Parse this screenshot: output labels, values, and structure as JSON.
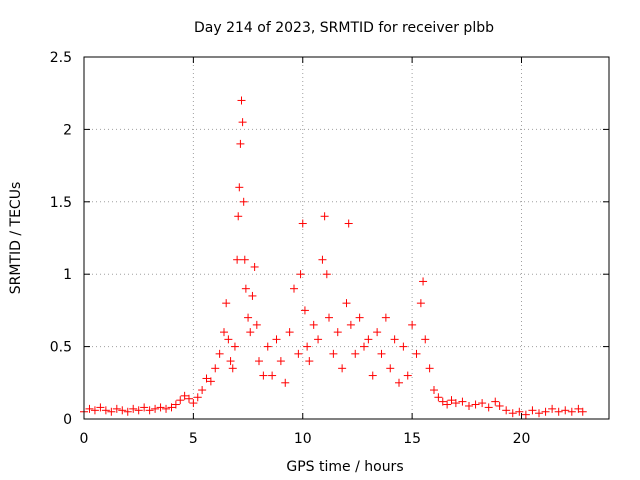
{
  "chart_data": {
    "type": "scatter",
    "title": "Day 214 of 2023, SRMTID for receiver plbb",
    "xlabel": "GPS time / hours",
    "ylabel": "SRMTID / TECUs",
    "xlim": [
      0,
      24
    ],
    "ylim": [
      0,
      2.5
    ],
    "xticks": [
      0,
      5,
      10,
      15,
      20
    ],
    "yticks": [
      0,
      0.5,
      1,
      1.5,
      2,
      2.5
    ],
    "xtick_labels": [
      "0",
      "5",
      "10",
      "15",
      "20"
    ],
    "ytick_labels": [
      "0",
      "0.5",
      "1",
      "1.5",
      "2",
      "2.5"
    ],
    "grid": true,
    "marker": "+",
    "series_color": "#ff0000",
    "series": [
      {
        "name": "SRMTID",
        "x": [
          0.0,
          0.25,
          0.5,
          0.75,
          1.0,
          1.25,
          1.5,
          1.75,
          2.0,
          2.25,
          2.5,
          2.75,
          3.0,
          3.25,
          3.5,
          3.75,
          4.0,
          4.2,
          4.4,
          4.6,
          4.8,
          5.0,
          5.2,
          5.4,
          5.6,
          5.8,
          6.0,
          6.2,
          6.4,
          6.5,
          6.6,
          6.7,
          6.8,
          6.9,
          7.0,
          7.05,
          7.1,
          7.15,
          7.2,
          7.25,
          7.3,
          7.35,
          7.4,
          7.5,
          7.6,
          7.7,
          7.8,
          7.9,
          8.0,
          8.2,
          8.4,
          8.6,
          8.8,
          9.0,
          9.2,
          9.4,
          9.6,
          9.8,
          9.9,
          10.0,
          10.1,
          10.2,
          10.3,
          10.5,
          10.7,
          10.9,
          11.0,
          11.1,
          11.2,
          11.4,
          11.6,
          11.8,
          12.0,
          12.1,
          12.2,
          12.4,
          12.6,
          12.8,
          13.0,
          13.2,
          13.4,
          13.6,
          13.8,
          14.0,
          14.2,
          14.4,
          14.6,
          14.8,
          15.0,
          15.2,
          15.4,
          15.5,
          15.6,
          15.8,
          16.0,
          16.2,
          16.4,
          16.6,
          16.8,
          17.0,
          17.3,
          17.6,
          17.9,
          18.2,
          18.5,
          18.8,
          19.0,
          19.3,
          19.6,
          19.9,
          20.2,
          20.5,
          20.8,
          21.1,
          21.4,
          21.7,
          22.0,
          22.3,
          22.6,
          22.8
        ],
        "y": [
          0.05,
          0.07,
          0.06,
          0.08,
          0.06,
          0.05,
          0.07,
          0.06,
          0.05,
          0.07,
          0.06,
          0.08,
          0.06,
          0.07,
          0.08,
          0.07,
          0.08,
          0.1,
          0.13,
          0.16,
          0.14,
          0.11,
          0.15,
          0.2,
          0.28,
          0.26,
          0.35,
          0.45,
          0.6,
          0.8,
          0.55,
          0.4,
          0.35,
          0.5,
          1.1,
          1.4,
          1.6,
          1.9,
          2.2,
          2.05,
          1.5,
          1.1,
          0.9,
          0.7,
          0.6,
          0.85,
          1.05,
          0.65,
          0.4,
          0.3,
          0.5,
          0.3,
          0.55,
          0.4,
          0.25,
          0.6,
          0.9,
          0.45,
          1.0,
          1.35,
          0.75,
          0.5,
          0.4,
          0.65,
          0.55,
          1.1,
          1.4,
          1.0,
          0.7,
          0.45,
          0.6,
          0.35,
          0.8,
          1.35,
          0.65,
          0.45,
          0.7,
          0.5,
          0.55,
          0.3,
          0.6,
          0.45,
          0.7,
          0.35,
          0.55,
          0.25,
          0.5,
          0.3,
          0.65,
          0.45,
          0.8,
          0.95,
          0.55,
          0.35,
          0.2,
          0.15,
          0.12,
          0.1,
          0.13,
          0.11,
          0.12,
          0.09,
          0.1,
          0.11,
          0.08,
          0.12,
          0.09,
          0.06,
          0.04,
          0.05,
          0.03,
          0.06,
          0.04,
          0.05,
          0.07,
          0.05,
          0.06,
          0.05,
          0.07,
          0.05
        ]
      }
    ]
  }
}
